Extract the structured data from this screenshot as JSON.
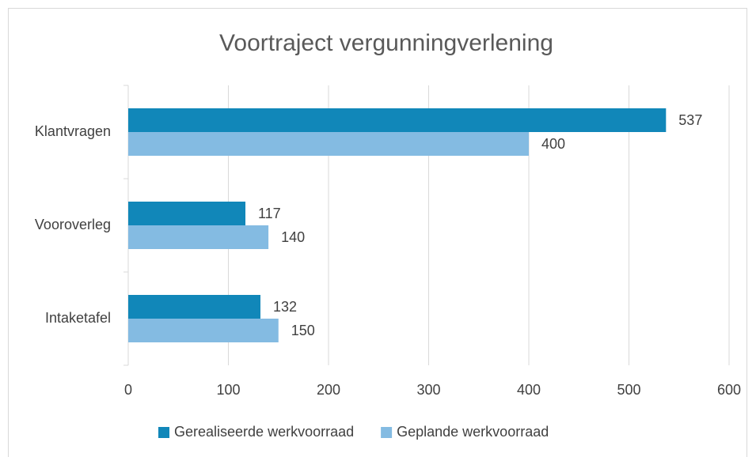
{
  "chart_data": {
    "type": "bar",
    "orientation": "horizontal",
    "title": "Voortraject vergunningverlening",
    "categories": [
      "Klantvragen",
      "Vooroverleg",
      "Intaketafel"
    ],
    "series": [
      {
        "name": "Gerealiseerde werkvoorraad",
        "color": "#1187b9",
        "values": [
          537,
          117,
          132
        ]
      },
      {
        "name": "Geplande werkvoorraad",
        "color": "#84bbe2",
        "values": [
          400,
          140,
          150
        ]
      }
    ],
    "xlim": [
      0,
      600
    ],
    "xticks": [
      0,
      100,
      200,
      300,
      400,
      500,
      600
    ],
    "grid": true,
    "legend": "bottom"
  }
}
